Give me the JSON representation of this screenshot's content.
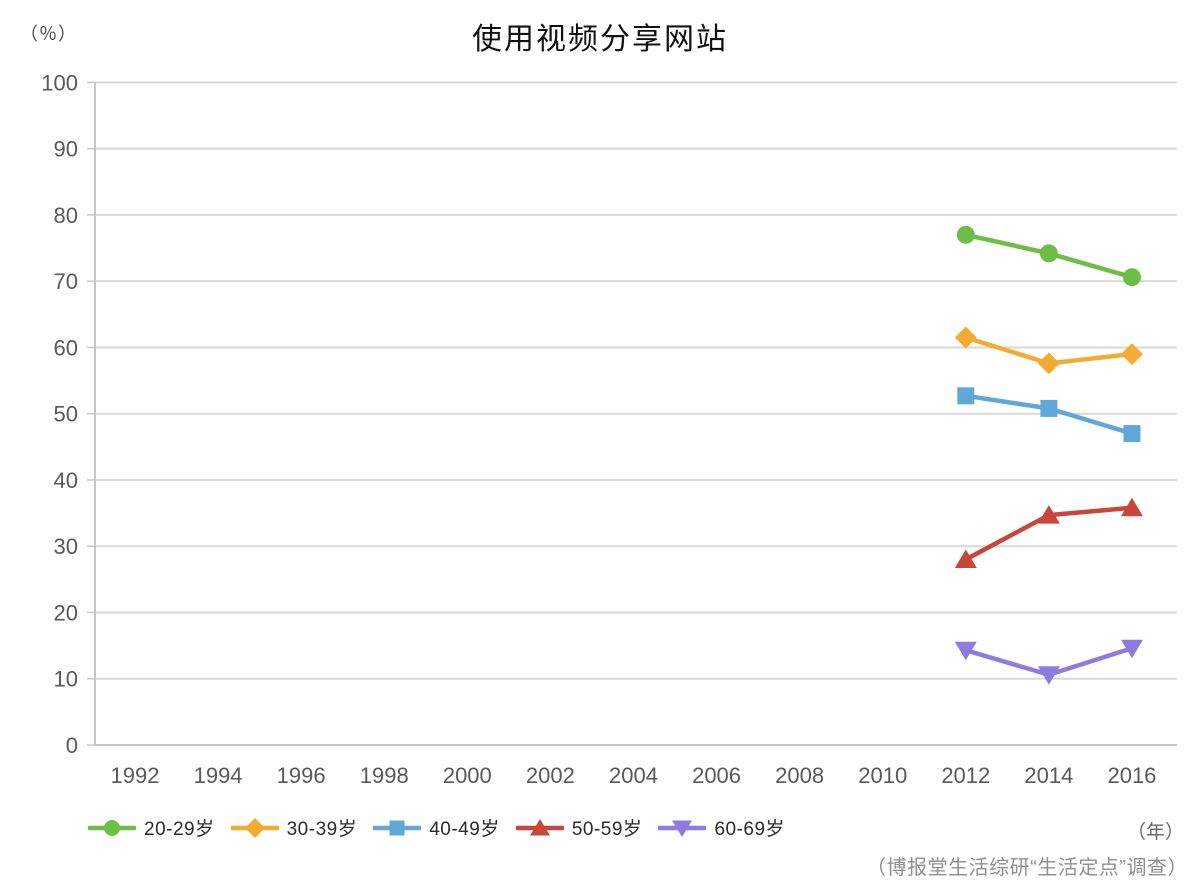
{
  "page": {
    "title": "使用视频分享网站",
    "y_axis_unit": "（％）",
    "x_axis_unit": "（年）",
    "source_note": "（博报堂生活综研“生活定点”调查）"
  },
  "chart_data": {
    "type": "line",
    "title": "使用视频分享网站",
    "ylabel": "（％）",
    "xlabel": "（年）",
    "source": "（博报堂生活综研“生活定点”调查）",
    "ylim": [
      0,
      100
    ],
    "y_tick_step": 10,
    "y_tick_labels": [
      "0",
      "10",
      "20",
      "30",
      "40",
      "50",
      "60",
      "70",
      "80",
      "90",
      "100"
    ],
    "x_tick_labels": [
      "1992",
      "1994",
      "1996",
      "1998",
      "2000",
      "2002",
      "2004",
      "2006",
      "2008",
      "2010",
      "2012",
      "2014",
      "2016"
    ],
    "x_years": [
      1992,
      1994,
      1996,
      1998,
      2000,
      2002,
      2004,
      2006,
      2008,
      2010,
      2012,
      2014,
      2016
    ],
    "grid": "horizontal",
    "legend_position": "bottom-left",
    "series": [
      {
        "name": "20-29岁",
        "marker": "circle",
        "color": "#6cbe45",
        "x": [
          2012,
          2014,
          2016
        ],
        "values": [
          77.0,
          74.2,
          70.6
        ]
      },
      {
        "name": "30-39岁",
        "marker": "diamond",
        "color": "#f3ab32",
        "x": [
          2012,
          2014,
          2016
        ],
        "values": [
          61.5,
          57.6,
          59.0
        ]
      },
      {
        "name": "40-49岁",
        "marker": "square",
        "color": "#5fa8d8",
        "x": [
          2012,
          2014,
          2016
        ],
        "values": [
          52.7,
          50.8,
          47.0
        ]
      },
      {
        "name": "50-59岁",
        "marker": "triangle-up",
        "color": "#c9463a",
        "x": [
          2012,
          2014,
          2016
        ],
        "values": [
          28.0,
          34.7,
          35.8
        ]
      },
      {
        "name": "60-69岁",
        "marker": "triangle-down",
        "color": "#8f7be0",
        "x": [
          2012,
          2014,
          2016
        ],
        "values": [
          14.3,
          10.6,
          14.6
        ]
      }
    ]
  },
  "colors": {
    "grid": "#d9d9d9",
    "axis": "#c6c6c6",
    "tick_label": "#595959",
    "legend_text": "#2b2b2b",
    "source_text": "#8f8f8f",
    "title_text": "#111111"
  }
}
